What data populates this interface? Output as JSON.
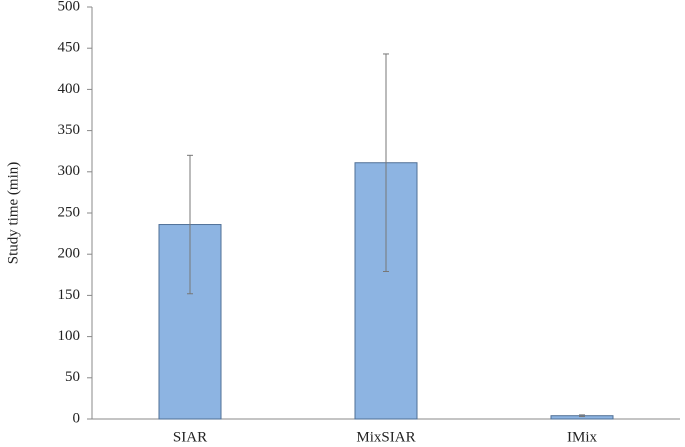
{
  "chart_data": {
    "type": "bar",
    "y_label": "Study time (min)",
    "categories": [
      "SIAR",
      "MixSIAR",
      "IMix"
    ],
    "values": [
      236,
      311,
      4
    ],
    "errors": [
      84,
      132,
      1
    ],
    "color": "#8db4e2",
    "ylim": [
      0,
      500
    ],
    "yticks": [
      0,
      50,
      100,
      150,
      200,
      250,
      300,
      350,
      400,
      450,
      500
    ],
    "grid": false
  }
}
